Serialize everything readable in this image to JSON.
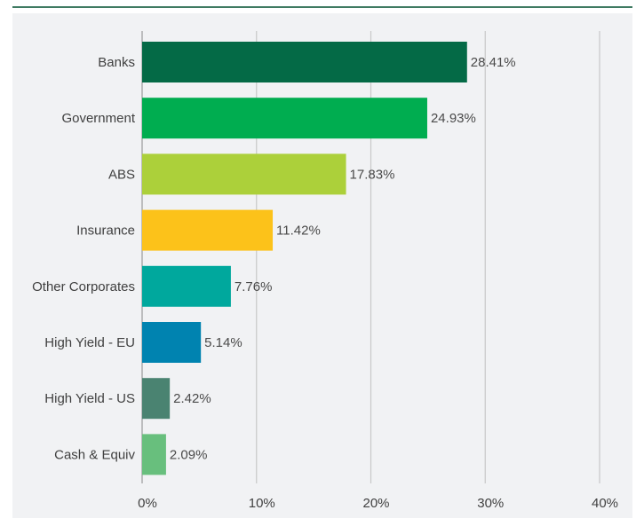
{
  "chart_data": {
    "type": "bar",
    "orientation": "horizontal",
    "categories": [
      "Banks",
      "Government",
      "ABS",
      "Insurance",
      "Other Corporates",
      "High Yield - EU",
      "High Yield - US",
      "Cash & Equiv"
    ],
    "values": [
      28.41,
      24.93,
      17.83,
      11.42,
      7.76,
      5.14,
      2.42,
      2.09
    ],
    "value_labels": [
      "28.41%",
      "24.93%",
      "17.83%",
      "11.42%",
      "7.76%",
      "5.14%",
      "2.42%",
      "2.09%"
    ],
    "colors": [
      "#046a46",
      "#00ad50",
      "#acd03a",
      "#fcc21a",
      "#00a89d",
      "#0083b0",
      "#4a8371",
      "#68bf7d"
    ],
    "xlim": [
      0,
      40
    ],
    "ticks": [
      0,
      10,
      20,
      30,
      40
    ],
    "tick_labels": [
      "0%",
      "10%",
      "20%",
      "30%",
      "40%"
    ],
    "grid": true,
    "legend": "none",
    "title": "",
    "xlabel": "",
    "ylabel": ""
  },
  "colors": {
    "gridline": "#c8c8c8",
    "axis_line": "#9a9a9a",
    "panel_background": "#f1f2f4",
    "top_rule": "#3f7a62"
  }
}
